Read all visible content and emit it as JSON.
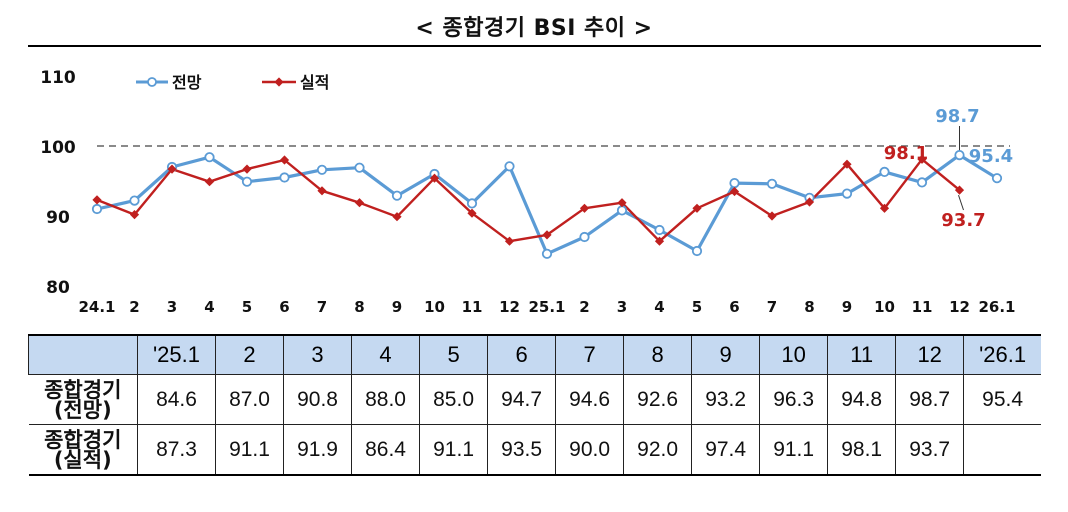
{
  "title": "< 종합경기 BSI 추이 >",
  "chart_data": {
    "type": "line",
    "title": "< 종합경기 BSI 추이 >",
    "categories": [
      "24.1",
      "2",
      "3",
      "4",
      "5",
      "6",
      "7",
      "8",
      "9",
      "10",
      "11",
      "12",
      "25.1",
      "2",
      "3",
      "4",
      "5",
      "6",
      "7",
      "8",
      "9",
      "10",
      "11",
      "12",
      "26.1"
    ],
    "ylim": [
      80,
      110
    ],
    "yticks": [
      "80",
      "90",
      "100",
      "110"
    ],
    "reference_line": 100,
    "grid": false,
    "legend_position": "top-left",
    "series": [
      {
        "name": "전망",
        "color": "#5b9bd5",
        "values": [
          91.0,
          92.2,
          97.0,
          98.4,
          94.9,
          95.5,
          96.6,
          96.9,
          92.9,
          96.0,
          91.8,
          97.1,
          84.6,
          87.0,
          90.8,
          88.0,
          85.0,
          94.7,
          94.6,
          92.6,
          93.2,
          96.3,
          94.8,
          98.7,
          95.4
        ]
      },
      {
        "name": "실적",
        "color": "#c0201f",
        "values": [
          92.3,
          90.2,
          96.7,
          94.9,
          96.7,
          98.0,
          93.6,
          91.9,
          89.9,
          95.4,
          90.4,
          86.4,
          87.3,
          91.1,
          91.9,
          86.4,
          91.1,
          93.5,
          90.0,
          92.0,
          97.4,
          91.1,
          98.1,
          93.7,
          null
        ]
      }
    ],
    "annotations": [
      {
        "text": "98.7",
        "series": "전망"
      },
      {
        "text": "95.4",
        "series": "전망"
      },
      {
        "text": "98.1",
        "series": "실적"
      },
      {
        "text": "93.7",
        "series": "실적"
      }
    ]
  },
  "table": {
    "headers": [
      "",
      "'25.1",
      "2",
      "3",
      "4",
      "5",
      "6",
      "7",
      "8",
      "9",
      "10",
      "11",
      "12",
      "'26.1"
    ],
    "rows": [
      {
        "label_line1": "종합경기",
        "label_line2": "(전망)",
        "values": [
          "84.6",
          "87.0",
          "90.8",
          "88.0",
          "85.0",
          "94.7",
          "94.6",
          "92.6",
          "93.2",
          "96.3",
          "94.8",
          "98.7",
          "95.4"
        ]
      },
      {
        "label_line1": "종합경기",
        "label_line2": "(실적)",
        "values": [
          "87.3",
          "91.1",
          "91.9",
          "86.4",
          "91.1",
          "93.5",
          "90.0",
          "92.0",
          "97.4",
          "91.1",
          "98.1",
          "93.7",
          ""
        ]
      }
    ]
  }
}
